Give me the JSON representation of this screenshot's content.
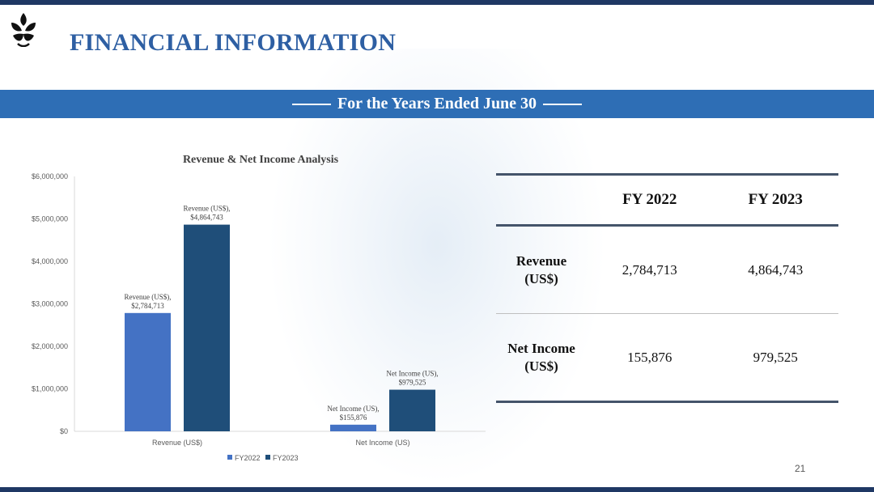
{
  "page": {
    "title": "FINANCIAL INFORMATION",
    "banner": "For the Years Ended June 30",
    "page_number": "21",
    "colors": {
      "accent": "#2e5fa3",
      "banner": "#2e6eb5",
      "bar_dark": "#1f3864"
    }
  },
  "chart_data": {
    "type": "bar",
    "title": "Revenue & Net Income Analysis",
    "categories": [
      "Revenue (US$)",
      "Net Income (US)"
    ],
    "series": [
      {
        "name": "FY2022",
        "values": [
          2784713,
          155876
        ],
        "color": "#4472c4",
        "labels": [
          "Revenue (US$),\n$2,784,713",
          "Net Income (US),\n$155,876"
        ]
      },
      {
        "name": "FY2023",
        "values": [
          4864743,
          979525
        ],
        "color": "#1f4e79",
        "labels": [
          "Revenue (US$),\n$4,864,743",
          "Net Income (US),\n$979,525"
        ]
      }
    ],
    "ylim": [
      0,
      6000000
    ],
    "yticks": [
      "$0",
      "$1,000,000",
      "$2,000,000",
      "$3,000,000",
      "$4,000,000",
      "$5,000,000",
      "$6,000,000"
    ],
    "xlabel": "",
    "ylabel": "",
    "grid": false,
    "legend_position": "bottom"
  },
  "table": {
    "headers": [
      "",
      "FY 2022",
      "FY 2023"
    ],
    "rows": [
      {
        "label_line1": "Revenue",
        "label_line2": "(US$)",
        "fy2022": "2,784,713",
        "fy2023": "4,864,743"
      },
      {
        "label_line1": "Net Income",
        "label_line2": "(US$)",
        "fy2022": "155,876",
        "fy2023": "979,525"
      }
    ]
  }
}
